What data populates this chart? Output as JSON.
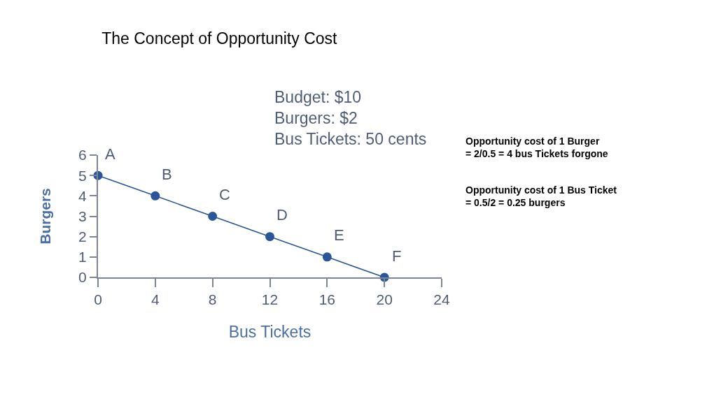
{
  "chart_data": {
    "type": "line",
    "title": "The Concept of Opportunity Cost",
    "xlabel": "Bus Tickets",
    "ylabel": "Burgers",
    "x": [
      0,
      4,
      8,
      12,
      16,
      20
    ],
    "series": [
      {
        "color": "#2a5599",
        "values": [
          5,
          4,
          3,
          2,
          1,
          0
        ]
      }
    ],
    "xlim": [
      0,
      24
    ],
    "xticks": [
      0,
      4,
      8,
      12,
      16,
      20,
      24
    ],
    "ylim": [
      0,
      6
    ],
    "yticks": [
      0,
      1,
      2,
      3,
      4,
      5,
      6
    ],
    "marker": "circle",
    "line_style": "solid",
    "annotations": [
      {
        "text": "A",
        "x": 0,
        "y": 5
      },
      {
        "text": "B",
        "x": 4,
        "y": 4
      },
      {
        "text": "C",
        "x": 8,
        "y": 3
      },
      {
        "text": "D",
        "x": 12,
        "y": 2
      },
      {
        "text": "E",
        "x": 16,
        "y": 1
      },
      {
        "text": "F",
        "x": 20,
        "y": 0
      },
      "Budget: $10\nBurgers: $2\nBus Tickets: 50 cents",
      "Opportunity cost of 1 Burger\n= 2/0.5 = 4 bus Tickets forgone",
      "Opportunity cost of 1 Bus Ticket\n= 0.5/2 = 0.25 burgers"
    ]
  }
}
